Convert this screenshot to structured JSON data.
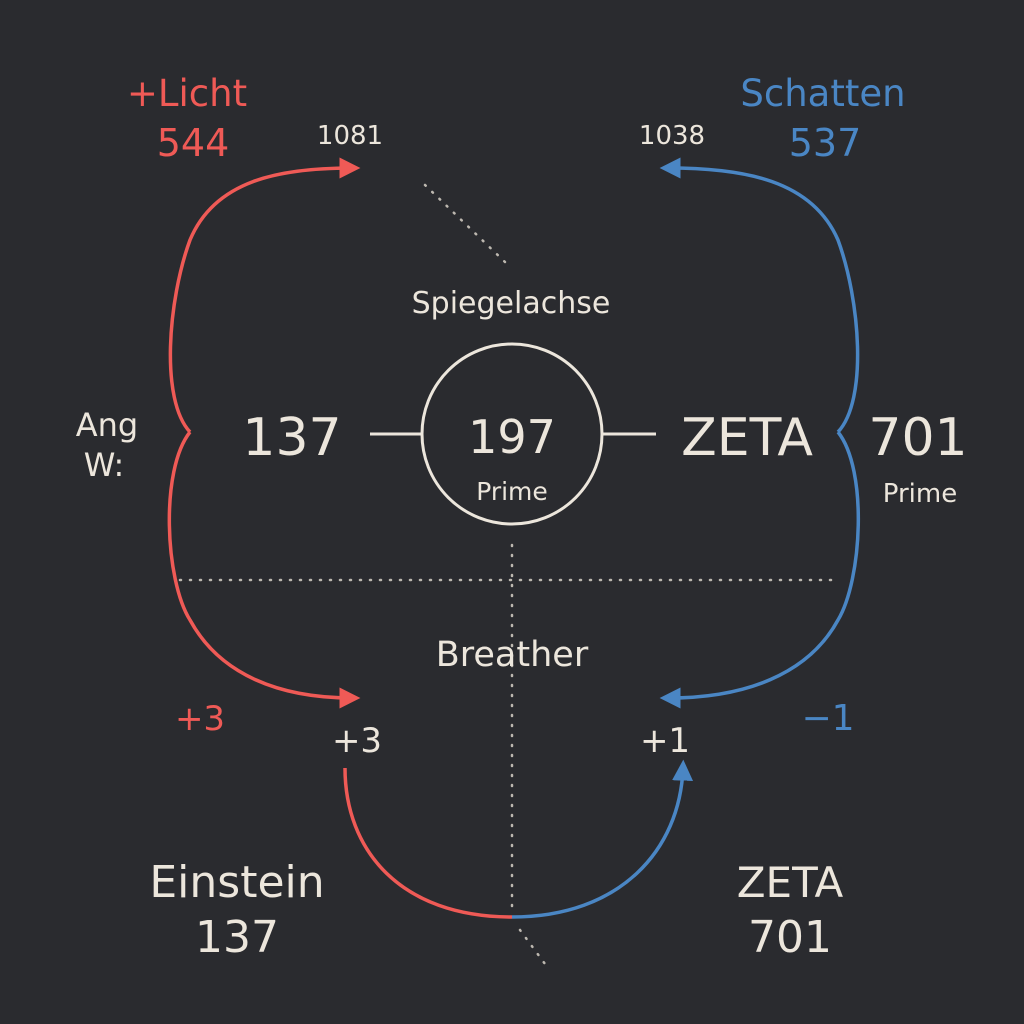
{
  "colors": {
    "background": "#2a2b2f",
    "light": "#ef5a56",
    "shadow": "#4a86c4",
    "neutral": "#ece6dc",
    "dots": "#bdb8b0"
  },
  "top_left": {
    "title": "+Licht",
    "value": "544",
    "arrow_target": "1081"
  },
  "top_right": {
    "title": "Schatten",
    "value": "537",
    "arrow_target": "1038"
  },
  "axis_label": "Spiegelachse",
  "left_side": {
    "line1": "Ang",
    "line2": "W:"
  },
  "center_row": {
    "left_value": "137",
    "circle_value": "197",
    "circle_label": "Prime",
    "right_word": "ZETA",
    "right_value": "701",
    "right_label": "Prime"
  },
  "lower": {
    "label": "Breather",
    "left_outer": "+3",
    "left_inner": "+3",
    "right_inner": "+1",
    "right_outer": "−1"
  },
  "bottom_left": {
    "line1": "Einstein",
    "line2": "137"
  },
  "bottom_right": {
    "line1": "ZETA",
    "line2": "701"
  }
}
